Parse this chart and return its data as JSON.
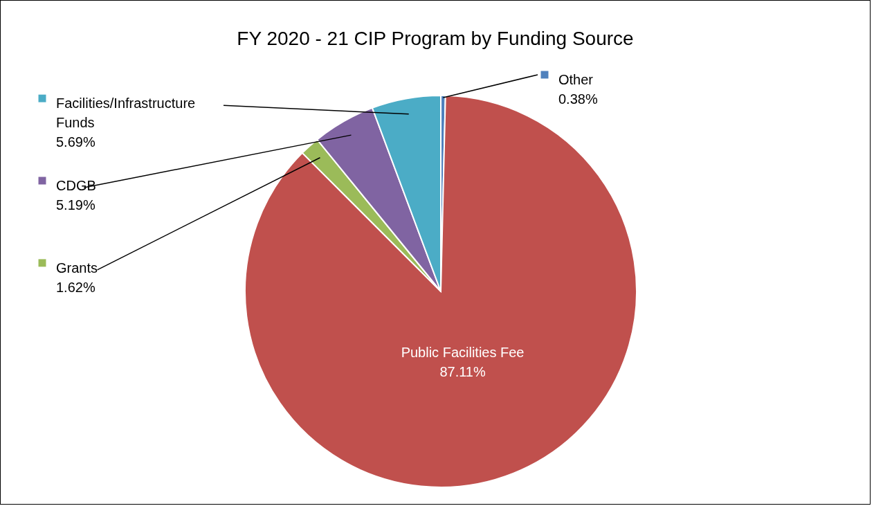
{
  "chart_data": {
    "type": "pie",
    "title": "FY 2020 - 21 CIP Program by Funding Source",
    "categories": [
      "Other",
      "Public Facilities Fee",
      "Grants",
      "CDGB",
      "Facilities/Infrastructure Funds"
    ],
    "values": [
      0.38,
      87.11,
      1.62,
      5.19,
      5.69
    ],
    "value_labels": [
      "0.38%",
      "87.11%",
      "1.62%",
      "5.19%",
      "5.69%"
    ],
    "colors": [
      "#4f81bd",
      "#c0504d",
      "#9bbb59",
      "#8064a2",
      "#4bacc6"
    ],
    "legend": "left"
  }
}
